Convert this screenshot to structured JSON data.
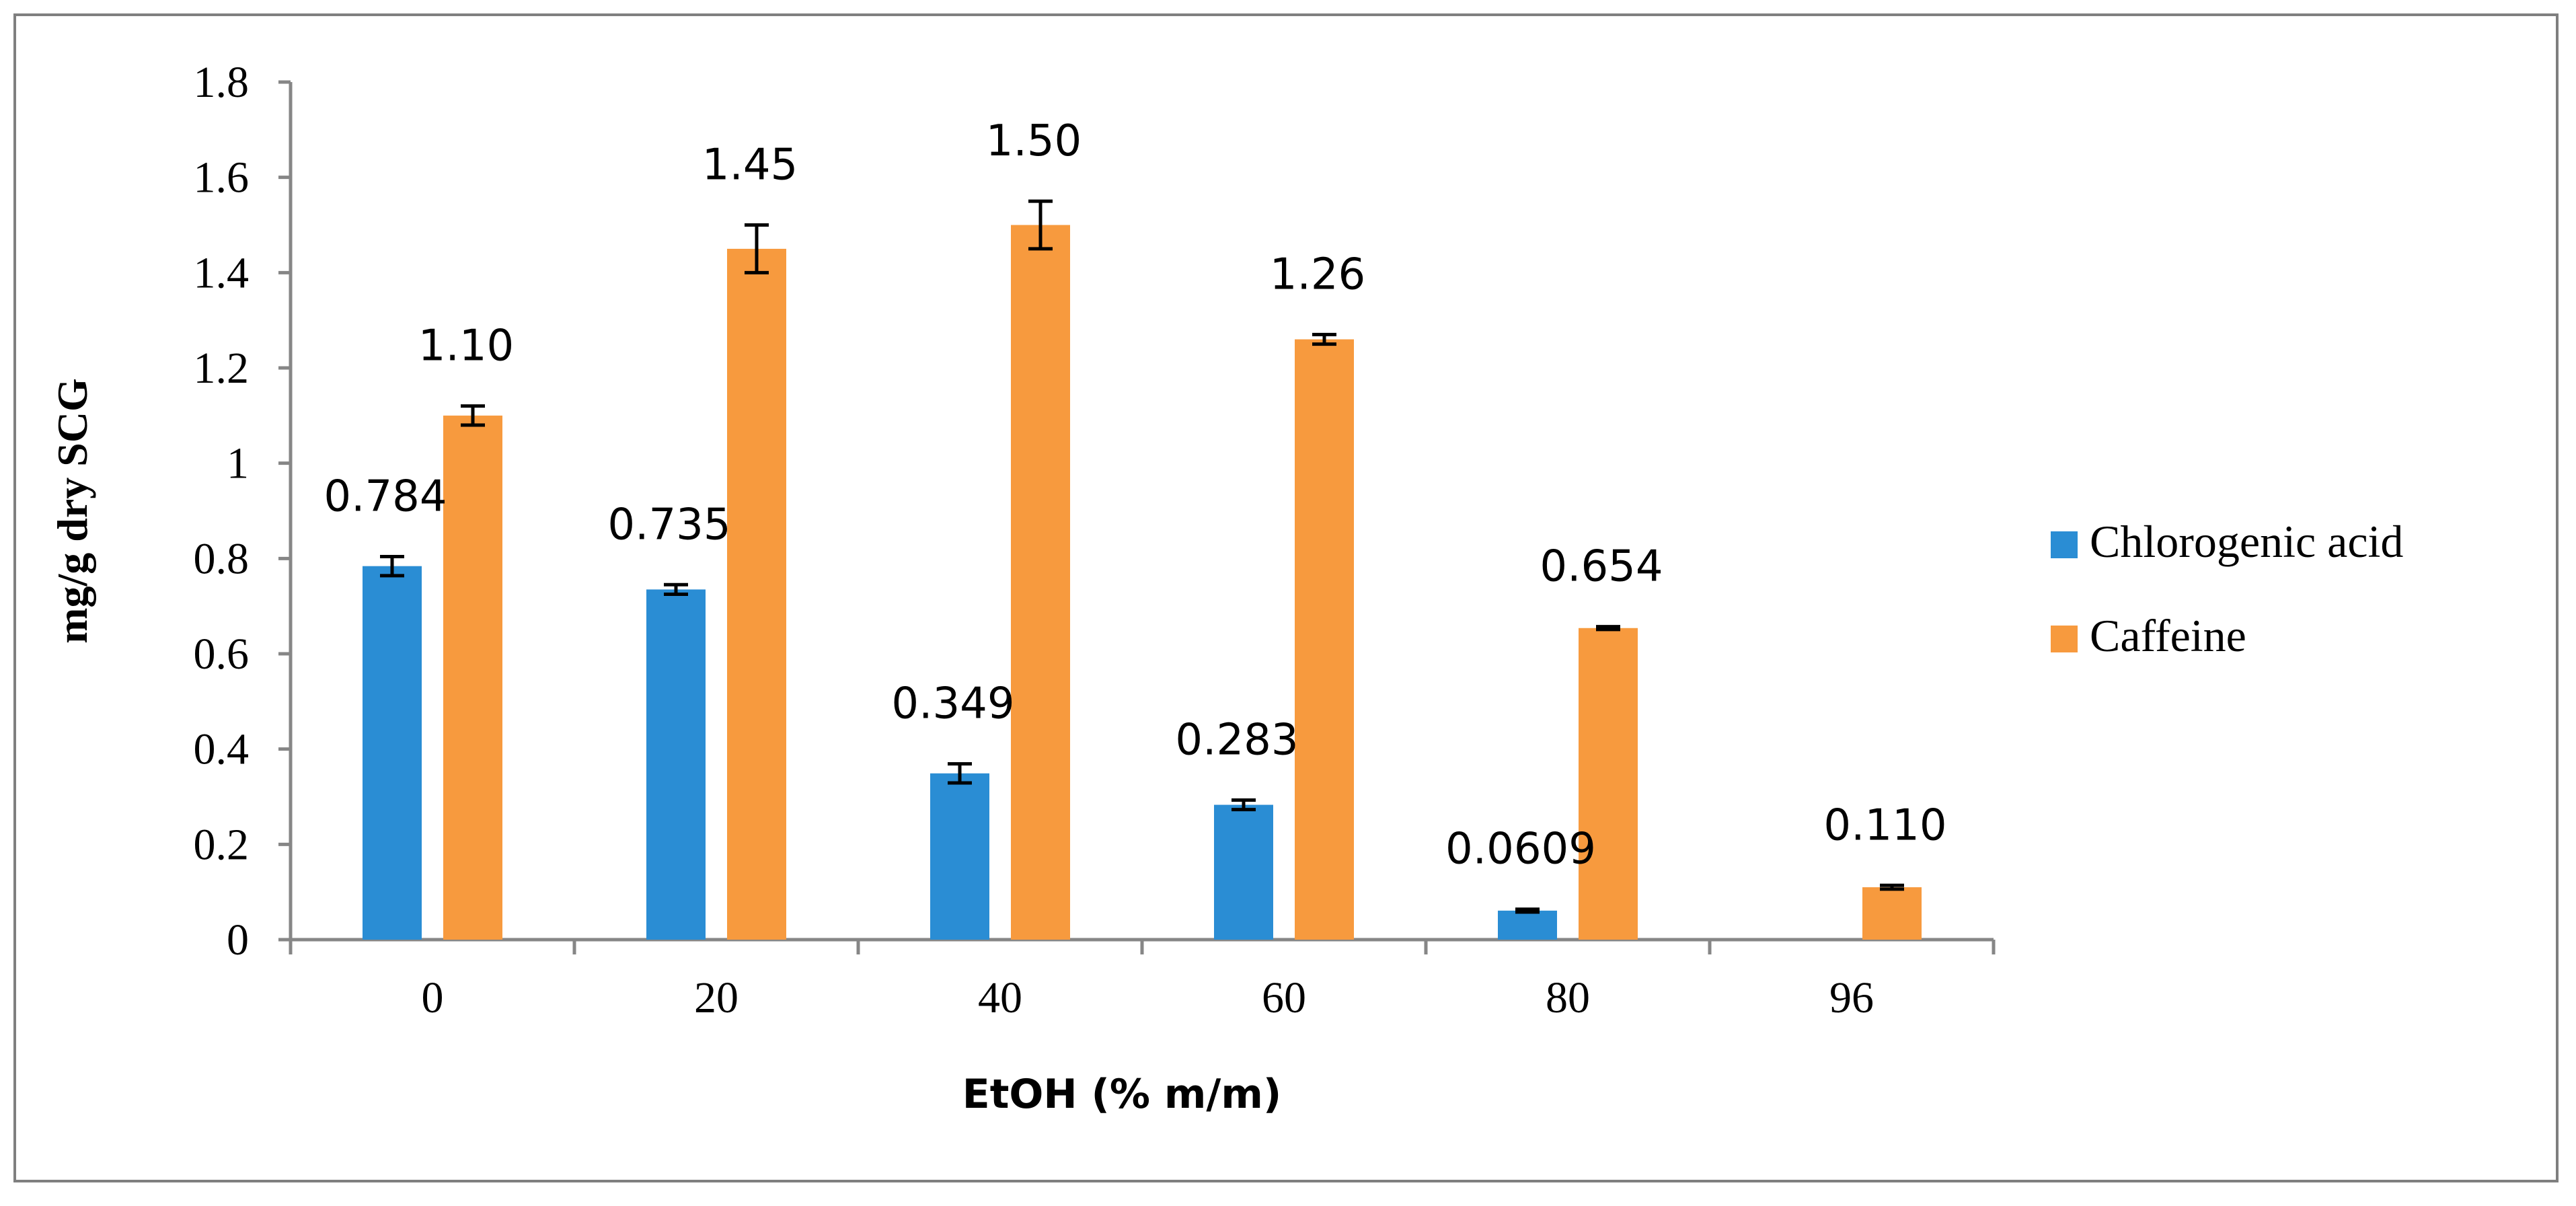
{
  "chart_data": {
    "type": "bar",
    "title": "",
    "xlabel": "EtOH (% m/m)",
    "ylabel": "mg/g dry SCG",
    "ylim": [
      0,
      1.8
    ],
    "yticks": [
      "0",
      "0.2",
      "0.4",
      "0.6",
      "0.8",
      "1",
      "1.2",
      "1.4",
      "1.6",
      "1.8"
    ],
    "ytick_values": [
      0,
      0.2,
      0.4,
      0.6,
      0.8,
      1.0,
      1.2,
      1.4,
      1.6,
      1.8
    ],
    "categories": [
      "0",
      "20",
      "40",
      "60",
      "80",
      "96"
    ],
    "legend_position": "right",
    "series": [
      {
        "name": "Chlorogenic acid",
        "color": "#2a8dd4",
        "values": [
          0.784,
          0.735,
          0.349,
          0.283,
          0.0609,
          null
        ],
        "errors": [
          0.02,
          0.01,
          0.02,
          0.01,
          0.003,
          null
        ],
        "labels": [
          "0.784",
          "0.735",
          "0.349",
          "0.283",
          "0.0609",
          ""
        ]
      },
      {
        "name": "Caffeine",
        "color": "#f79a3e",
        "values": [
          1.1,
          1.45,
          1.5,
          1.26,
          0.654,
          0.11
        ],
        "errors": [
          0.02,
          0.05,
          0.05,
          0.01,
          0.003,
          0.004
        ],
        "labels": [
          "1.10",
          "1.45",
          "1.50",
          "1.26",
          "0.654",
          "0.110"
        ]
      }
    ]
  }
}
